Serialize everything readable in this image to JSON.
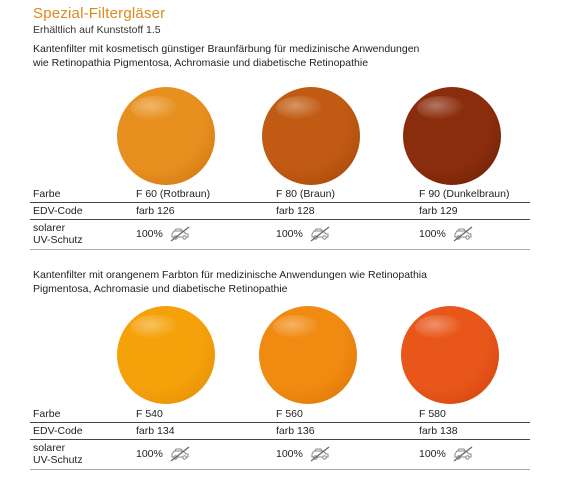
{
  "header": {
    "title": "Spezial-Filtergläser",
    "subtitle": "Erhältlich auf Kunststoff 1.5"
  },
  "section1": {
    "description_line1": "Kantenfilter mit kosmetisch günstiger Braunfärbung für medizinische Anwendungen",
    "description_line2": "wie Retinopathia Pigmentosa, Achromasie und diabetische Retinopathie",
    "row_labels": {
      "farbe": "Farbe",
      "edv": "EDV-Code",
      "uv1": "solarer",
      "uv2": "UV-Schutz"
    },
    "lenses": [
      {
        "name": "F 60 (Rotbraun)",
        "code": "farb 126",
        "uv": "100%",
        "color": "#e8901f",
        "edge": "#c76f10"
      },
      {
        "name": "F 80 (Braun)",
        "code": "farb 128",
        "uv": "100%",
        "color": "#c15a12",
        "edge": "#9e440a"
      },
      {
        "name": "F 90 (Dunkelbraun)",
        "code": "farb 129",
        "uv": "100%",
        "color": "#8a2d0c",
        "edge": "#6a1f07"
      }
    ]
  },
  "section2": {
    "description_line1": "Kantenfilter mit orangenem Farbton für medizinische Anwendungen wie Retinopathia",
    "description_line2": "Pigmentosa, Achromasie und diabetische Retinopathie",
    "row_labels": {
      "farbe": "Farbe",
      "edv": "EDV-Code",
      "uv1": "solarer",
      "uv2": "UV-Schutz"
    },
    "lenses": [
      {
        "name": "F 540",
        "code": "farb 134",
        "uv": "100%",
        "color": "#f5a10a",
        "edge": "#de8a05"
      },
      {
        "name": "F 560",
        "code": "farb 136",
        "uv": "100%",
        "color": "#f08a10",
        "edge": "#d87208"
      },
      {
        "name": "F 580",
        "code": "farb 138",
        "uv": "100%",
        "color": "#e8561a",
        "edge": "#cc4210"
      }
    ]
  },
  "icons": {
    "uv": "car-no-icon"
  }
}
